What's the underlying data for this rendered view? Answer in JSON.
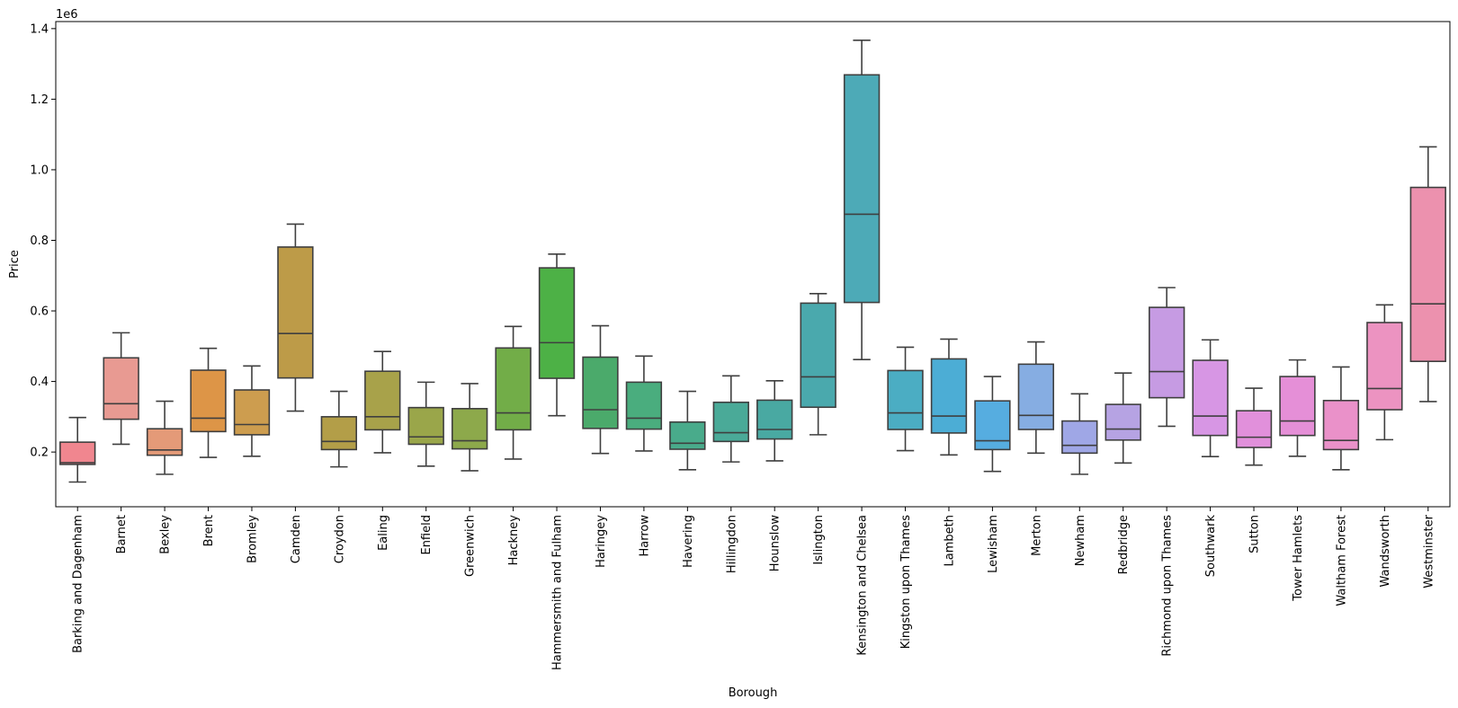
{
  "chart_data": {
    "type": "box",
    "xlabel": "Borough",
    "ylabel": "Price",
    "offset_label": "1e6",
    "ylim": [
      0.045,
      1.42
    ],
    "yticks": [
      0.2,
      0.4,
      0.6,
      0.8,
      1.0,
      1.2,
      1.4
    ],
    "ytick_labels": [
      "0.2",
      "0.4",
      "0.6",
      "0.8",
      "1.0",
      "1.2",
      "1.4"
    ],
    "grid": false,
    "legend": "none",
    "categories": [
      "Barking and Dagenham",
      "Barnet",
      "Bexley",
      "Brent",
      "Bromley",
      "Camden",
      "Croydon",
      "Ealing",
      "Enfield",
      "Greenwich",
      "Hackney",
      "Hammersmith and Fulham",
      "Haringey",
      "Harrow",
      "Havering",
      "Hillingdon",
      "Hounslow",
      "Islington",
      "Kensington and Chelsea",
      "Kingston upon Thames",
      "Lambeth",
      "Lewisham",
      "Merton",
      "Newham",
      "Redbridge",
      "Richmond upon Thames",
      "Southwark",
      "Sutton",
      "Tower Hamlets",
      "Waltham Forest",
      "Wandsworth",
      "Westminster"
    ],
    "boxes": [
      {
        "whislo": 0.115,
        "q1": 0.165,
        "med": 0.17,
        "q3": 0.228,
        "whishi": 0.298,
        "color": "#f0868f"
      },
      {
        "whislo": 0.222,
        "q1": 0.293,
        "med": 0.337,
        "q3": 0.467,
        "whishi": 0.538,
        "color": "#e89a92"
      },
      {
        "whislo": 0.137,
        "q1": 0.191,
        "med": 0.206,
        "q3": 0.266,
        "whishi": 0.344,
        "color": "#e49a78"
      },
      {
        "whislo": 0.185,
        "q1": 0.258,
        "med": 0.296,
        "q3": 0.432,
        "whishi": 0.494,
        "color": "#dd9547"
      },
      {
        "whislo": 0.188,
        "q1": 0.249,
        "med": 0.278,
        "q3": 0.376,
        "whishi": 0.444,
        "color": "#cd9d4f"
      },
      {
        "whislo": 0.316,
        "q1": 0.41,
        "med": 0.536,
        "q3": 0.781,
        "whishi": 0.846,
        "color": "#bd9b48"
      },
      {
        "whislo": 0.158,
        "q1": 0.207,
        "med": 0.23,
        "q3": 0.3,
        "whishi": 0.372,
        "color": "#b39e48"
      },
      {
        "whislo": 0.198,
        "q1": 0.263,
        "med": 0.3,
        "q3": 0.429,
        "whishi": 0.485,
        "color": "#a8a24a"
      },
      {
        "whislo": 0.16,
        "q1": 0.222,
        "med": 0.243,
        "q3": 0.326,
        "whishi": 0.398,
        "color": "#9aa64a"
      },
      {
        "whislo": 0.147,
        "q1": 0.209,
        "med": 0.232,
        "q3": 0.323,
        "whishi": 0.394,
        "color": "#8da94b"
      },
      {
        "whislo": 0.18,
        "q1": 0.263,
        "med": 0.311,
        "q3": 0.495,
        "whishi": 0.556,
        "color": "#72ad48"
      },
      {
        "whislo": 0.303,
        "q1": 0.409,
        "med": 0.51,
        "q3": 0.722,
        "whishi": 0.761,
        "color": "#4db146"
      },
      {
        "whislo": 0.196,
        "q1": 0.267,
        "med": 0.32,
        "q3": 0.469,
        "whishi": 0.558,
        "color": "#4baa6b"
      },
      {
        "whislo": 0.203,
        "q1": 0.265,
        "med": 0.296,
        "q3": 0.398,
        "whishi": 0.472,
        "color": "#4aad7e"
      },
      {
        "whislo": 0.15,
        "q1": 0.208,
        "med": 0.225,
        "q3": 0.285,
        "whishi": 0.372,
        "color": "#49ab8b"
      },
      {
        "whislo": 0.172,
        "q1": 0.23,
        "med": 0.255,
        "q3": 0.341,
        "whishi": 0.416,
        "color": "#4aaa98"
      },
      {
        "whislo": 0.175,
        "q1": 0.237,
        "med": 0.264,
        "q3": 0.347,
        "whishi": 0.402,
        "color": "#49a9a2"
      },
      {
        "whislo": 0.249,
        "q1": 0.327,
        "med": 0.413,
        "q3": 0.622,
        "whishi": 0.649,
        "color": "#4aa9ad"
      },
      {
        "whislo": 0.462,
        "q1": 0.624,
        "med": 0.874,
        "q3": 1.269,
        "whishi": 1.367,
        "color": "#4daab7"
      },
      {
        "whislo": 0.204,
        "q1": 0.264,
        "med": 0.311,
        "q3": 0.431,
        "whishi": 0.497,
        "color": "#4badc3"
      },
      {
        "whislo": 0.192,
        "q1": 0.254,
        "med": 0.302,
        "q3": 0.464,
        "whishi": 0.52,
        "color": "#4cadd5"
      },
      {
        "whislo": 0.145,
        "q1": 0.207,
        "med": 0.232,
        "q3": 0.345,
        "whishi": 0.414,
        "color": "#56ade0"
      },
      {
        "whislo": 0.197,
        "q1": 0.264,
        "med": 0.304,
        "q3": 0.449,
        "whishi": 0.512,
        "color": "#86ade2"
      },
      {
        "whislo": 0.137,
        "q1": 0.197,
        "med": 0.219,
        "q3": 0.288,
        "whishi": 0.365,
        "color": "#9fa7e6"
      },
      {
        "whislo": 0.169,
        "q1": 0.234,
        "med": 0.265,
        "q3": 0.335,
        "whishi": 0.424,
        "color": "#b6a3e3"
      },
      {
        "whislo": 0.273,
        "q1": 0.354,
        "med": 0.428,
        "q3": 0.61,
        "whishi": 0.666,
        "color": "#c69be3"
      },
      {
        "whislo": 0.187,
        "q1": 0.247,
        "med": 0.302,
        "q3": 0.46,
        "whishi": 0.518,
        "color": "#d796e4"
      },
      {
        "whislo": 0.163,
        "q1": 0.213,
        "med": 0.242,
        "q3": 0.317,
        "whishi": 0.381,
        "color": "#e190db"
      },
      {
        "whislo": 0.188,
        "q1": 0.247,
        "med": 0.288,
        "q3": 0.414,
        "whishi": 0.461,
        "color": "#e58fd7"
      },
      {
        "whislo": 0.15,
        "q1": 0.207,
        "med": 0.233,
        "q3": 0.346,
        "whishi": 0.441,
        "color": "#ea91c9"
      },
      {
        "whislo": 0.235,
        "q1": 0.32,
        "med": 0.38,
        "q3": 0.567,
        "whishi": 0.617,
        "color": "#ec93c1"
      },
      {
        "whislo": 0.343,
        "q1": 0.457,
        "med": 0.62,
        "q3": 0.95,
        "whishi": 1.065,
        "color": "#ec91ae"
      }
    ]
  }
}
